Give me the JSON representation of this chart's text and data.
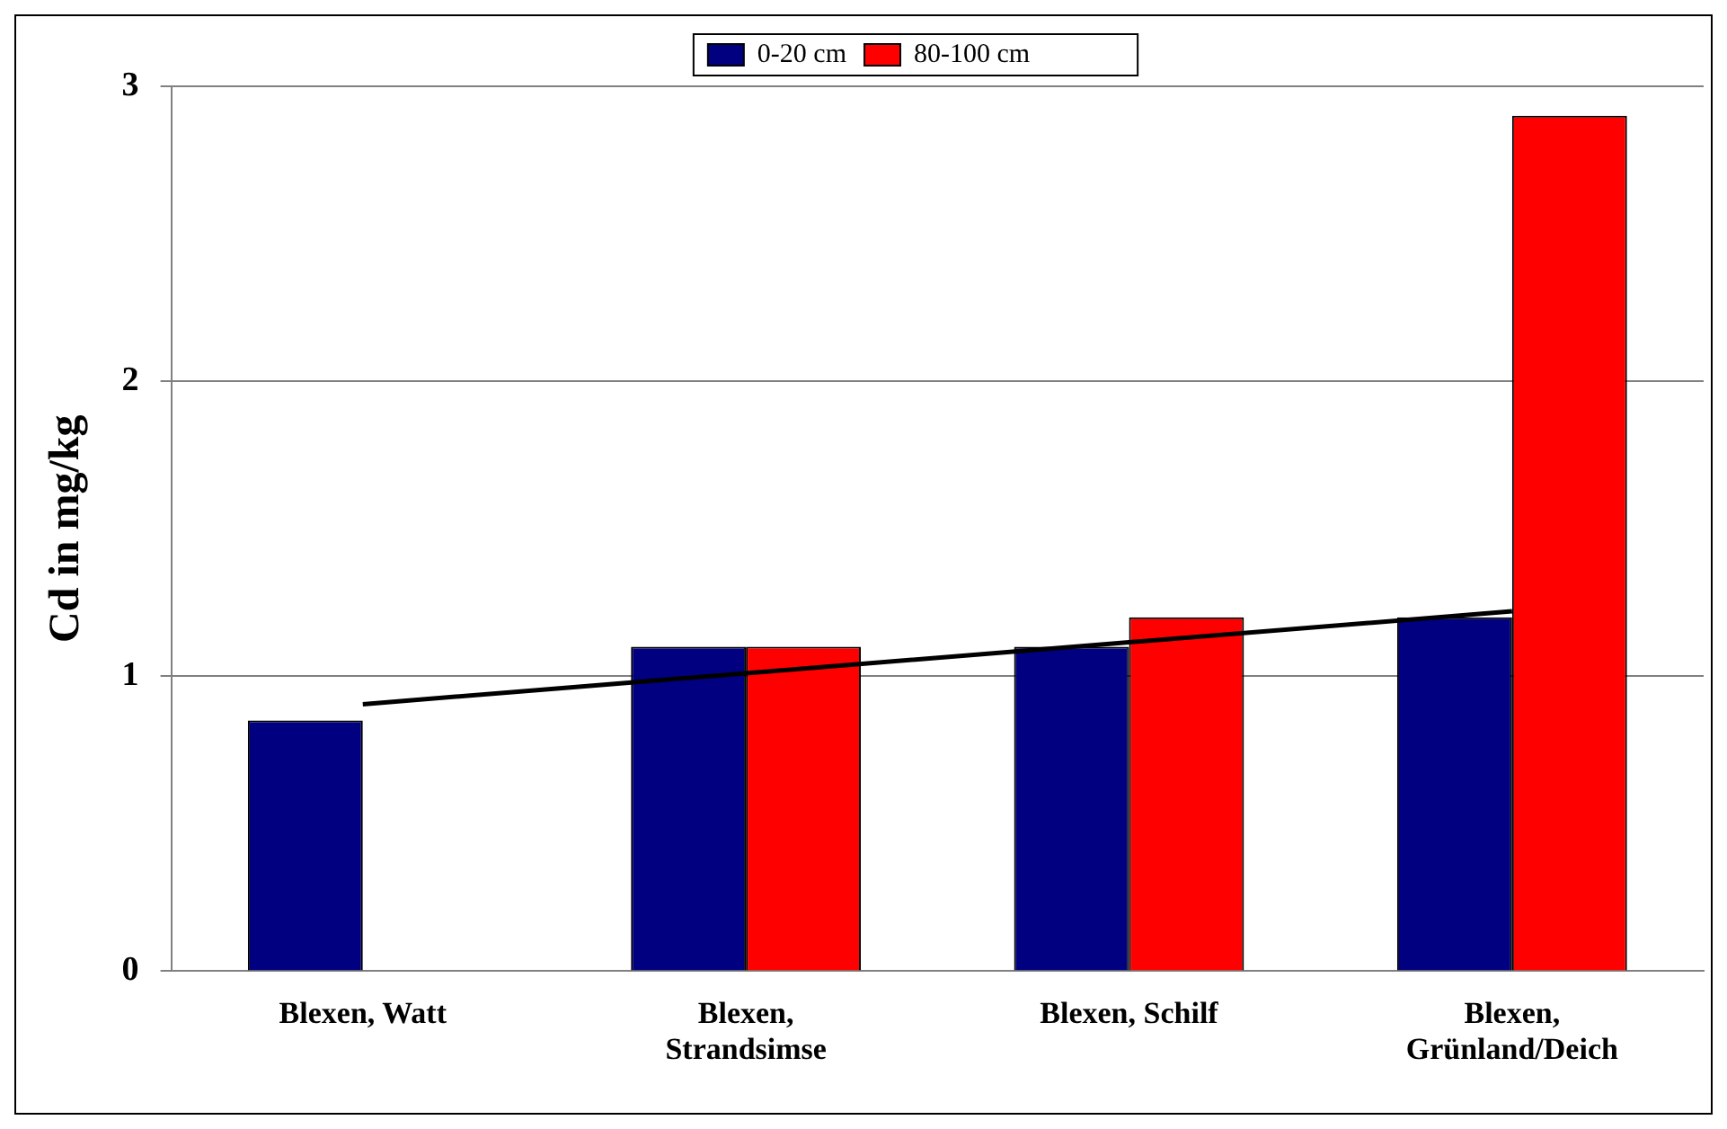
{
  "chart_data": {
    "type": "bar",
    "ylabel": "Cd in mg/kg",
    "categories": [
      "Blexen, Watt",
      "Blexen,\nStrandsimse",
      "Blexen, Schilf",
      "Blexen,\nGrünland/Deich"
    ],
    "series": [
      {
        "name": "0-20 cm",
        "color": "#000080",
        "values": [
          0.85,
          1.1,
          1.1,
          1.2
        ]
      },
      {
        "name": "80-100 cm",
        "color": "#ff0000",
        "values": [
          null,
          1.1,
          1.2,
          2.9
        ]
      },
      {
        "type": "line",
        "color": "#000000",
        "values": [
          0.905,
          1.01,
          1.115,
          1.22
        ]
      }
    ],
    "ylim": [
      0,
      3
    ],
    "yticks": [
      0,
      1,
      2,
      3
    ],
    "grid": "y",
    "legend": "top",
    "marker": "none"
  }
}
